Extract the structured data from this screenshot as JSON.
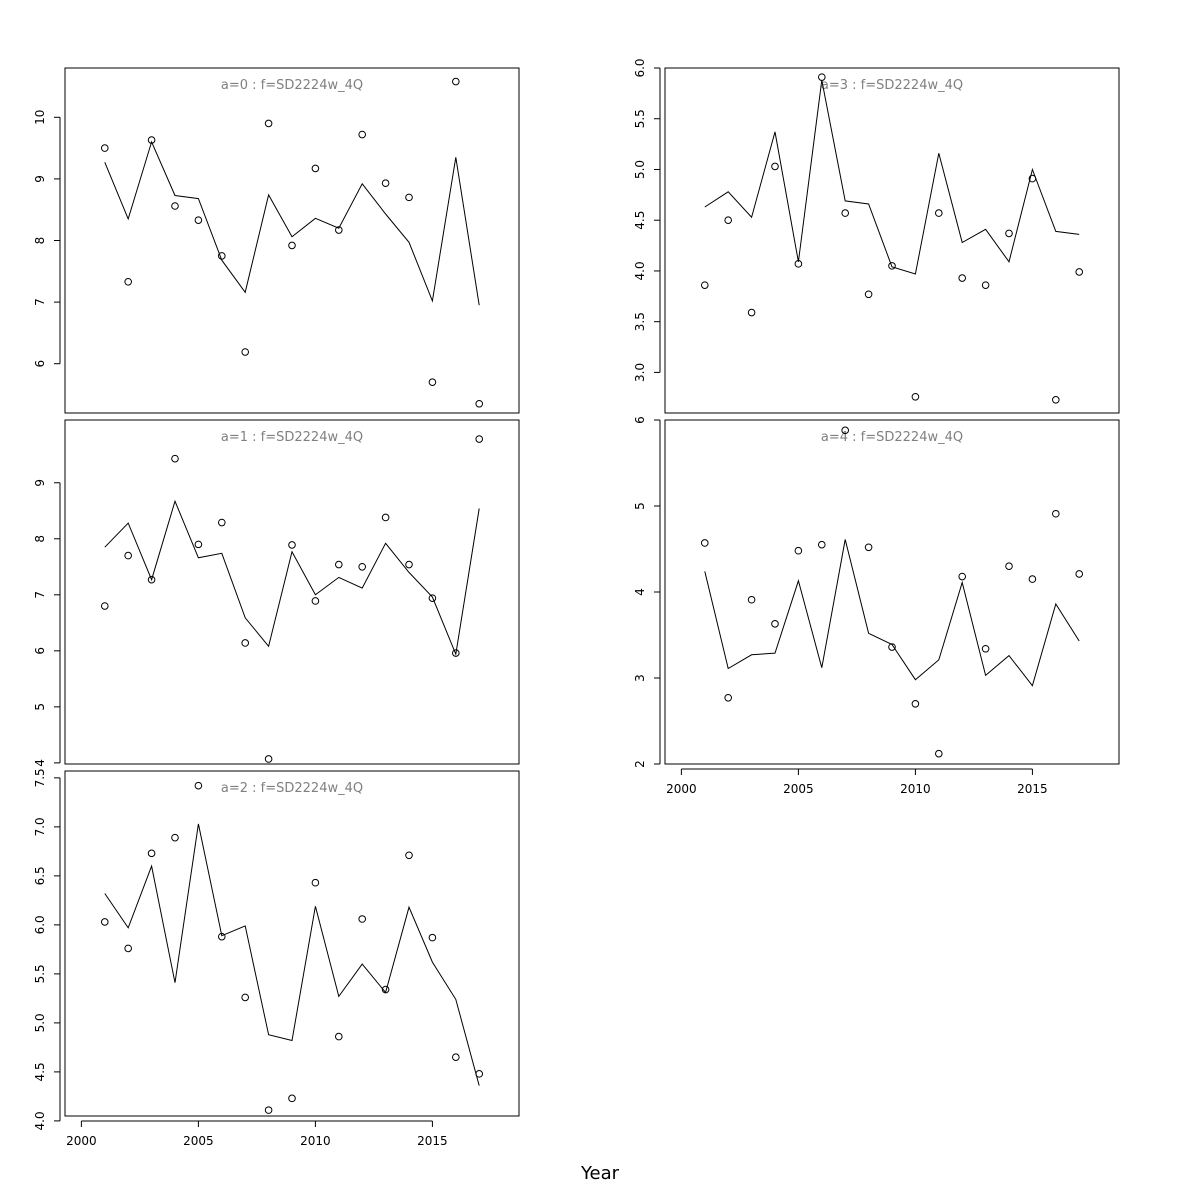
{
  "figure": {
    "xlabel": "Year"
  },
  "chart_data": [
    {
      "type": "line",
      "title": "a=0  :  f=SD2224w_4Q",
      "x": [
        2001,
        2002,
        2003,
        2004,
        2005,
        2006,
        2007,
        2008,
        2009,
        2010,
        2011,
        2012,
        2013,
        2014,
        2015,
        2016,
        2017
      ],
      "series": [
        {
          "kind": "points",
          "values": [
            9.5,
            7.33,
            9.63,
            8.56,
            8.33,
            7.75,
            6.19,
            9.9,
            7.92,
            9.17,
            8.17,
            9.72,
            8.93,
            8.7,
            5.7,
            10.58,
            5.35
          ]
        },
        {
          "kind": "line",
          "values": [
            9.27,
            8.35,
            9.6,
            8.73,
            8.68,
            7.68,
            7.16,
            8.74,
            8.06,
            8.36,
            8.2,
            8.92,
            8.43,
            7.97,
            7.02,
            9.35,
            6.95
          ]
        }
      ],
      "xlim": [
        1999.3,
        2018.7
      ],
      "ylim": [
        5.2,
        10.8
      ],
      "yticks": [
        6,
        7,
        8,
        9,
        10
      ],
      "xticks": [],
      "grid": false
    },
    {
      "type": "line",
      "title": "a=1  :  f=SD2224w_4Q",
      "x": [
        2001,
        2002,
        2003,
        2004,
        2005,
        2006,
        2007,
        2008,
        2009,
        2010,
        2011,
        2012,
        2013,
        2014,
        2015,
        2016,
        2017
      ],
      "series": [
        {
          "kind": "points",
          "values": [
            6.8,
            7.7,
            7.27,
            9.43,
            7.9,
            8.29,
            6.14,
            4.07,
            7.89,
            6.89,
            7.54,
            7.5,
            8.38,
            7.54,
            6.94,
            5.96,
            9.78
          ]
        },
        {
          "kind": "line",
          "values": [
            7.85,
            8.28,
            7.27,
            8.67,
            7.66,
            7.74,
            6.59,
            6.08,
            7.77,
            7.0,
            7.31,
            7.12,
            7.92,
            7.4,
            6.96,
            5.94,
            8.54
          ]
        }
      ],
      "xlim": [
        1999.3,
        2018.7
      ],
      "ylim": [
        3.98,
        10.12
      ],
      "yticks": [
        4,
        5,
        6,
        7,
        8,
        9
      ],
      "xticks": [],
      "grid": false
    },
    {
      "type": "line",
      "title": "a=2  :  f=SD2224w_4Q",
      "x": [
        2001,
        2002,
        2003,
        2004,
        2005,
        2006,
        2007,
        2008,
        2009,
        2010,
        2011,
        2012,
        2013,
        2014,
        2015,
        2016,
        2017
      ],
      "series": [
        {
          "kind": "points",
          "values": [
            6.03,
            5.76,
            6.73,
            6.89,
            7.42,
            5.88,
            5.26,
            4.11,
            4.23,
            6.43,
            4.86,
            6.06,
            5.34,
            6.71,
            5.87,
            4.65,
            4.48
          ]
        },
        {
          "kind": "line",
          "values": [
            6.32,
            5.97,
            6.6,
            5.41,
            7.03,
            5.89,
            5.99,
            4.88,
            4.82,
            6.19,
            5.27,
            5.6,
            5.31,
            6.18,
            5.62,
            5.24,
            4.36
          ]
        }
      ],
      "xlim": [
        1999.3,
        2018.7
      ],
      "ylim": [
        4.05,
        7.57
      ],
      "yticks": [
        4.0,
        4.5,
        5.0,
        5.5,
        6.0,
        6.5,
        7.0,
        7.5
      ],
      "xticks": [
        2000,
        2005,
        2010,
        2015
      ],
      "grid": false
    },
    {
      "type": "line",
      "title": "a=3  :  f=SD2224w_4Q",
      "x": [
        2001,
        2002,
        2003,
        2004,
        2005,
        2006,
        2007,
        2008,
        2009,
        2010,
        2011,
        2012,
        2013,
        2014,
        2015,
        2016,
        2017
      ],
      "series": [
        {
          "kind": "points",
          "values": [
            3.86,
            4.5,
            3.59,
            5.03,
            4.07,
            5.91,
            4.57,
            3.77,
            4.05,
            2.76,
            4.57,
            3.93,
            3.86,
            4.37,
            4.91,
            2.73,
            3.99
          ]
        },
        {
          "kind": "line",
          "values": [
            4.63,
            4.78,
            4.53,
            5.37,
            4.09,
            5.88,
            4.69,
            4.66,
            4.04,
            3.97,
            5.16,
            4.28,
            4.41,
            4.09,
            5.0,
            4.39,
            4.36
          ]
        }
      ],
      "xlim": [
        1999.3,
        2018.7
      ],
      "ylim": [
        2.6,
        6.0
      ],
      "yticks": [
        3.0,
        3.5,
        4.0,
        4.5,
        5.0,
        5.5,
        6.0
      ],
      "xticks": [],
      "grid": false
    },
    {
      "type": "line",
      "title": "a=4  :  f=SD2224w_4Q",
      "x": [
        2001,
        2002,
        2003,
        2004,
        2005,
        2006,
        2007,
        2008,
        2009,
        2010,
        2011,
        2012,
        2013,
        2014,
        2015,
        2016,
        2017
      ],
      "series": [
        {
          "kind": "points",
          "values": [
            4.57,
            2.77,
            3.91,
            3.63,
            4.48,
            4.55,
            5.88,
            4.52,
            3.36,
            2.7,
            2.12,
            4.18,
            3.34,
            4.3,
            4.15,
            4.91,
            4.21
          ]
        },
        {
          "kind": "line",
          "values": [
            4.24,
            3.11,
            3.27,
            3.29,
            4.13,
            3.12,
            4.61,
            3.52,
            3.39,
            2.98,
            3.21,
            4.11,
            3.03,
            3.26,
            2.91,
            3.86,
            3.43
          ]
        }
      ],
      "xlim": [
        1999.3,
        2018.7
      ],
      "ylim": [
        2.0,
        6.0
      ],
      "yticks": [
        2,
        3,
        4,
        5,
        6
      ],
      "xticks": [
        2000,
        2005,
        2010,
        2015
      ],
      "grid": false
    }
  ]
}
